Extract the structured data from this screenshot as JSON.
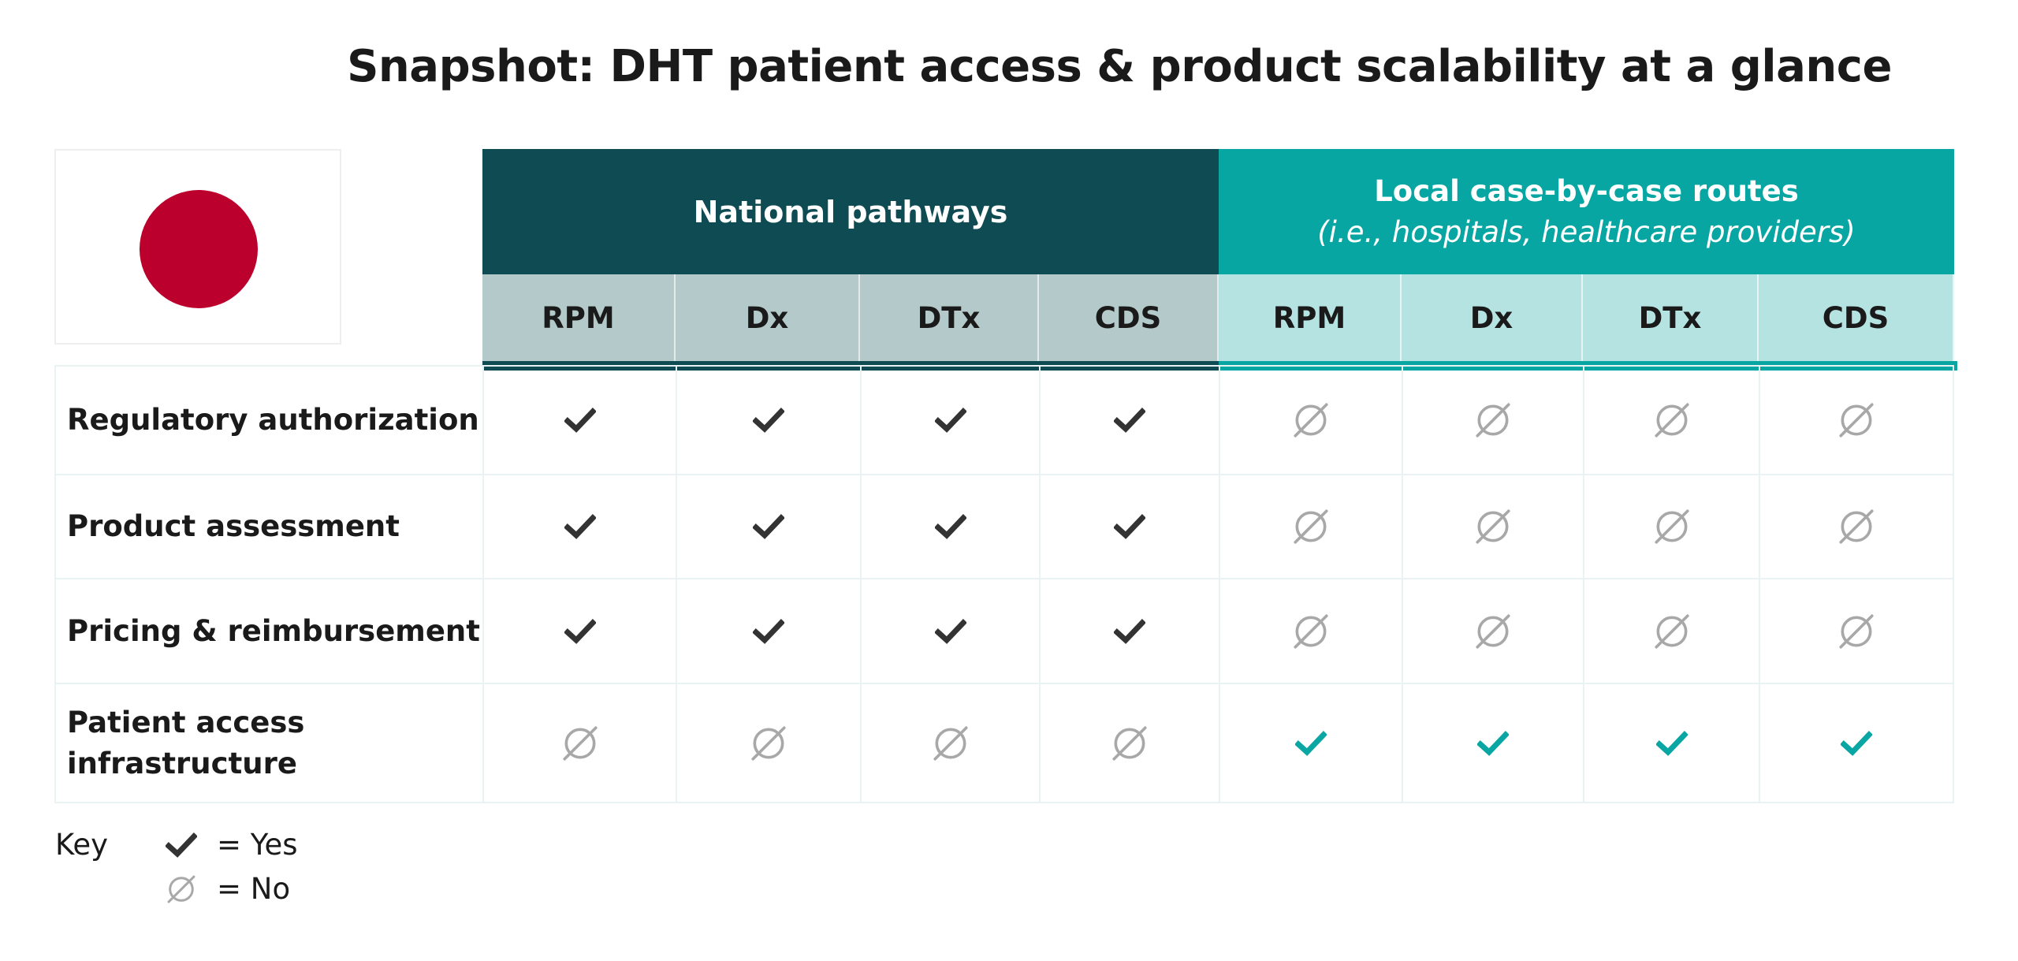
{
  "title": "Snapshot: DHT patient access & product scalability at a glance",
  "colors": {
    "flag_red": "#bc002d",
    "national_dark": "#0e4b53",
    "national_light": "#b4c9c9",
    "local_teal": "#08a6a3",
    "local_light": "#b5e3e2",
    "check_dark": "#333333",
    "check_teal": "#0aa6a3",
    "no_gray": "#a8a8a8"
  },
  "groups": {
    "national": {
      "label": "National pathways"
    },
    "local": {
      "label": "Local case-by-case routes",
      "sublabel": "(i.e., hospitals, healthcare providers)"
    }
  },
  "columns": [
    "RPM",
    "Dx",
    "DTx",
    "CDS",
    "RPM",
    "Dx",
    "DTx",
    "CDS"
  ],
  "rows": [
    {
      "label": "Regulatory authorization",
      "values": [
        "yes",
        "yes",
        "yes",
        "yes",
        "no",
        "no",
        "no",
        "no"
      ]
    },
    {
      "label": "Product assessment",
      "values": [
        "yes",
        "yes",
        "yes",
        "yes",
        "no",
        "no",
        "no",
        "no"
      ]
    },
    {
      "label": "Pricing & reimbursement",
      "values": [
        "yes",
        "yes",
        "yes",
        "yes",
        "no",
        "no",
        "no",
        "no"
      ]
    },
    {
      "label": "Patient access infrastructure",
      "values": [
        "no",
        "no",
        "no",
        "no",
        "yes-teal",
        "yes-teal",
        "yes-teal",
        "yes-teal"
      ]
    }
  ],
  "key": {
    "label": "Key",
    "yes_label": "= Yes",
    "no_label": "= No"
  },
  "icons": {
    "yes": "check-icon",
    "no": "empty-set-icon",
    "flag": "japan-flag"
  }
}
